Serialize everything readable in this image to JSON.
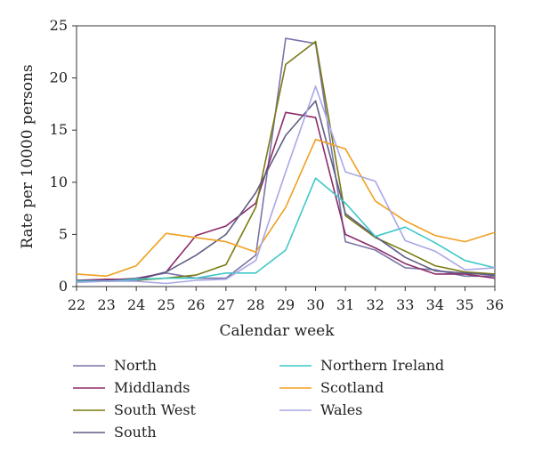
{
  "chart_data": {
    "type": "line",
    "xlabel": "Calendar week",
    "ylabel": "Rate per 10000 persons",
    "x": [
      22,
      23,
      24,
      25,
      26,
      27,
      28,
      29,
      30,
      31,
      32,
      33,
      34,
      35,
      36
    ],
    "xlim": [
      22,
      36
    ],
    "ylim": [
      0,
      25
    ],
    "yticks": [
      0,
      5,
      10,
      15,
      20,
      25
    ],
    "grid": false,
    "legend_position": "bottom",
    "series": [
      {
        "name": "North",
        "color": "#7b74a8",
        "values": [
          0.5,
          0.6,
          0.8,
          1.3,
          0.8,
          0.8,
          3.0,
          23.8,
          23.3,
          4.3,
          3.5,
          1.8,
          1.6,
          1.0,
          1.0
        ]
      },
      {
        "name": "Middlands",
        "color": "#8b2a6a",
        "values": [
          0.6,
          0.7,
          0.7,
          1.4,
          4.9,
          5.8,
          8.0,
          16.7,
          16.2,
          5.0,
          3.7,
          2.2,
          1.2,
          1.2,
          0.8
        ]
      },
      {
        "name": "South West",
        "color": "#7a7a14",
        "values": [
          0.5,
          0.5,
          0.6,
          0.8,
          1.1,
          2.1,
          7.6,
          21.3,
          23.5,
          6.8,
          4.7,
          3.4,
          2.0,
          1.4,
          1.2
        ]
      },
      {
        "name": "South",
        "color": "#5f5e85",
        "values": [
          0.6,
          0.6,
          0.6,
          1.4,
          3.0,
          5.0,
          9.0,
          14.5,
          17.8,
          7.0,
          4.8,
          2.8,
          1.5,
          1.3,
          1.1
        ]
      },
      {
        "name": "Northern Ireland",
        "color": "#3ec8c8",
        "values": [
          0.5,
          0.5,
          0.7,
          0.8,
          0.8,
          1.3,
          1.3,
          3.5,
          10.4,
          8.0,
          4.8,
          5.7,
          4.2,
          2.5,
          1.8
        ]
      },
      {
        "name": "Scotland",
        "color": "#f0a020",
        "values": [
          1.2,
          1.0,
          2.0,
          5.1,
          4.7,
          4.3,
          3.3,
          7.6,
          14.1,
          13.2,
          8.2,
          6.3,
          4.9,
          4.3,
          5.2
        ]
      },
      {
        "name": "Wales",
        "color": "#a8a8e6",
        "values": [
          0.4,
          0.5,
          0.5,
          0.3,
          0.6,
          0.7,
          2.5,
          11.0,
          19.2,
          11.0,
          10.1,
          4.4,
          3.4,
          1.6,
          1.8
        ]
      }
    ]
  }
}
